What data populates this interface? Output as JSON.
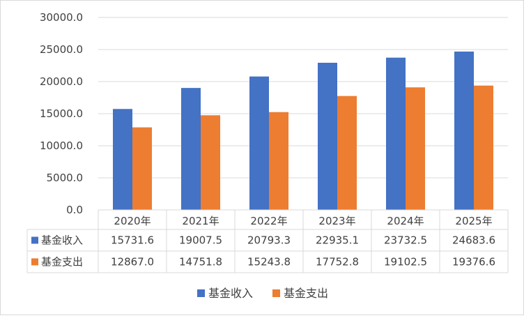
{
  "chart_data": {
    "type": "bar",
    "categories": [
      "2020年",
      "2021年",
      "2022年",
      "2023年",
      "2024年",
      "2025年"
    ],
    "series": [
      {
        "name": "基金收入",
        "color": "#4472C4",
        "values": [
          15731.6,
          19007.5,
          20793.3,
          22935.1,
          23732.5,
          24683.6
        ],
        "display": [
          "15731.6",
          "19007.5",
          "20793.3",
          "22935.1",
          "23732.5",
          "24683.6"
        ]
      },
      {
        "name": "基金支出",
        "color": "#ED7D31",
        "values": [
          12867.0,
          14751.8,
          15243.8,
          17752.8,
          19102.5,
          19376.6
        ],
        "display": [
          "12867.0",
          "14751.8",
          "15243.8",
          "17752.8",
          "19102.5",
          "19376.6"
        ]
      }
    ],
    "yticks": [
      "0.0",
      "5000.0",
      "10000.0",
      "15000.0",
      "20000.0",
      "25000.0",
      "30000.0"
    ],
    "ylim": [
      0,
      30000
    ],
    "grid": true,
    "legend_position": "bottom",
    "data_table": true,
    "title": "",
    "xlabel": "",
    "ylabel": ""
  }
}
